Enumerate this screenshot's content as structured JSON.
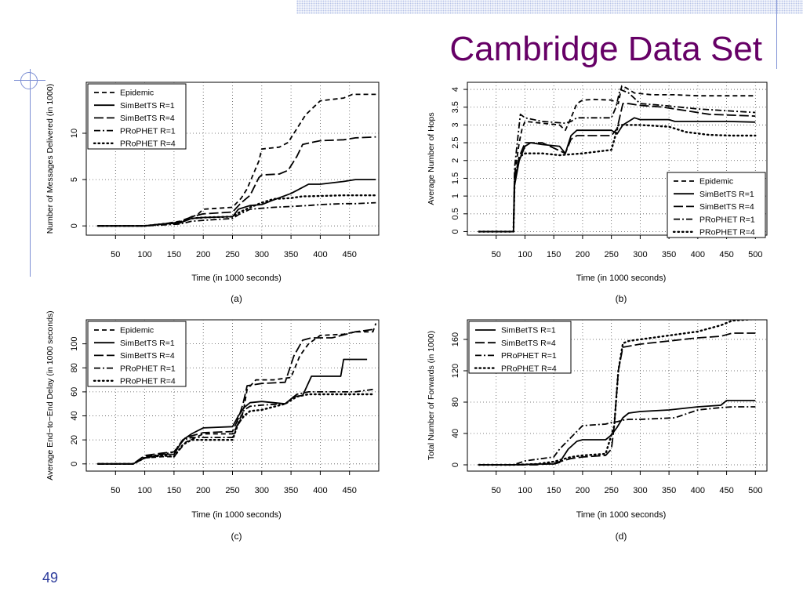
{
  "slide": {
    "title": "Cambridge Data Set",
    "page_number": "49"
  },
  "colors": {
    "title": "#660066",
    "accent": "#7d8fd4",
    "page_number": "#2b3a9b"
  },
  "chart_data": [
    {
      "type": "line",
      "caption": "(a)",
      "xlabel": "Time (in 1000 seconds)",
      "ylabel": "Number of Messages Delivered (in 1000)",
      "xlim": [
        0,
        500
      ],
      "ylim": [
        -1,
        15.5
      ],
      "xticks": [
        50,
        100,
        150,
        200,
        250,
        300,
        350,
        400,
        450
      ],
      "yticks": [
        0,
        5,
        10
      ],
      "grid": true,
      "legend_position": "top-left",
      "series": [
        {
          "name": "Epidemic",
          "style": "dashed",
          "x": [
            20,
            100,
            130,
            160,
            190,
            200,
            250,
            265,
            275,
            285,
            295,
            300,
            330,
            345,
            360,
            375,
            400,
            440,
            455,
            495
          ],
          "y": [
            0,
            0,
            0.2,
            0.5,
            1.2,
            1.8,
            2,
            3,
            4,
            5.5,
            7,
            8.3,
            8.5,
            9,
            10.5,
            12,
            13.5,
            13.8,
            14.2,
            14.2
          ]
        },
        {
          "name": "SimBetTS R=1",
          "style": "solid",
          "x": [
            20,
            100,
            130,
            160,
            180,
            200,
            250,
            260,
            280,
            300,
            320,
            350,
            365,
            380,
            400,
            440,
            460,
            495
          ],
          "y": [
            0,
            0,
            0.2,
            0.3,
            0.8,
            0.9,
            1.0,
            1.8,
            2.2,
            2.3,
            2.8,
            3.5,
            4.0,
            4.5,
            4.5,
            4.8,
            5.0,
            5.0
          ]
        },
        {
          "name": "SimBetTS R=4",
          "style": "longdash",
          "x": [
            20,
            100,
            130,
            160,
            180,
            200,
            250,
            265,
            280,
            295,
            300,
            330,
            345,
            360,
            370,
            385,
            400,
            440,
            460,
            495
          ],
          "y": [
            0,
            0,
            0.2,
            0.4,
            1.0,
            1.3,
            1.5,
            2.5,
            3.3,
            5.2,
            5.5,
            5.6,
            6.0,
            7.5,
            8.8,
            9.0,
            9.2,
            9.3,
            9.5,
            9.6
          ]
        },
        {
          "name": "PRoPHET R=1",
          "style": "dashdot",
          "x": [
            20,
            100,
            130,
            160,
            180,
            200,
            250,
            260,
            280,
            300,
            320,
            350,
            380,
            400,
            440,
            460,
            495
          ],
          "y": [
            0,
            0,
            0.1,
            0.2,
            0.5,
            0.6,
            0.8,
            1.2,
            1.8,
            1.9,
            2.0,
            2.1,
            2.2,
            2.3,
            2.4,
            2.4,
            2.5
          ]
        },
        {
          "name": "PRoPHET R=4",
          "style": "dotted",
          "x": [
            20,
            100,
            130,
            160,
            180,
            200,
            250,
            260,
            280,
            300,
            320,
            350,
            370,
            380,
            440,
            460,
            495
          ],
          "y": [
            0,
            0,
            0.2,
            0.4,
            0.8,
            0.9,
            1.0,
            1.4,
            2.0,
            2.5,
            2.9,
            3.0,
            3.2,
            3.2,
            3.3,
            3.3,
            3.3
          ]
        }
      ]
    },
    {
      "type": "line",
      "caption": "(b)",
      "xlabel": "Time (in 1000 seconds)",
      "ylabel": "Average Number of Hops",
      "xlim": [
        0,
        520
      ],
      "ylim": [
        -0.1,
        4.2
      ],
      "xticks": [
        50,
        100,
        150,
        200,
        250,
        300,
        350,
        400,
        450,
        500
      ],
      "yticks": [
        0,
        0.5,
        1,
        1.5,
        2,
        2.5,
        3,
        3.5,
        4
      ],
      "grid": true,
      "legend_position": "bottom-right",
      "series": [
        {
          "name": "Epidemic",
          "style": "dashed",
          "x": [
            20,
            80,
            82,
            90,
            95,
            100,
            130,
            160,
            170,
            180,
            190,
            200,
            220,
            250,
            262,
            268,
            275,
            290,
            320,
            360,
            400,
            500
          ],
          "y": [
            0,
            0,
            1.6,
            2.5,
            2.9,
            3.1,
            3.05,
            3.0,
            2.85,
            3.2,
            3.6,
            3.7,
            3.72,
            3.7,
            3.6,
            4.1,
            4.05,
            3.9,
            3.85,
            3.85,
            3.82,
            3.82
          ]
        },
        {
          "name": "SimBetTS R=1",
          "style": "solid",
          "x": [
            20,
            80,
            82,
            90,
            100,
            110,
            130,
            160,
            170,
            180,
            190,
            250,
            260,
            270,
            280,
            290,
            300,
            350,
            360,
            400,
            450,
            500
          ],
          "y": [
            0,
            0,
            1.3,
            2.0,
            2.4,
            2.5,
            2.45,
            2.4,
            2.2,
            2.7,
            2.85,
            2.85,
            2.75,
            3.0,
            3.1,
            3.2,
            3.15,
            3.15,
            3.1,
            3.1,
            3.1,
            3.08
          ]
        },
        {
          "name": "SimBetTS R=4",
          "style": "longdash",
          "x": [
            20,
            80,
            82,
            90,
            100,
            130,
            170,
            180,
            190,
            250,
            260,
            270,
            280,
            300,
            340,
            380,
            420,
            500
          ],
          "y": [
            0,
            0,
            1.5,
            2.1,
            2.5,
            2.5,
            2.2,
            2.6,
            2.7,
            2.7,
            2.9,
            3.6,
            3.6,
            3.55,
            3.5,
            3.4,
            3.3,
            3.25
          ]
        },
        {
          "name": "PRoPHET R=1",
          "style": "dashdot",
          "x": [
            20,
            80,
            82,
            92,
            100,
            130,
            170,
            180,
            190,
            250,
            258,
            265,
            280,
            300,
            340,
            400,
            450,
            500
          ],
          "y": [
            0,
            0,
            1.8,
            3.3,
            3.2,
            3.1,
            3.05,
            3.1,
            3.2,
            3.2,
            3.5,
            4.0,
            3.9,
            3.6,
            3.55,
            3.45,
            3.4,
            3.35
          ]
        },
        {
          "name": "PRoPHET R=4",
          "style": "dotted",
          "x": [
            20,
            80,
            82,
            90,
            100,
            130,
            160,
            200,
            250,
            262,
            270,
            300,
            350,
            380,
            420,
            460,
            500
          ],
          "y": [
            0,
            0,
            1.4,
            2.1,
            2.2,
            2.2,
            2.15,
            2.2,
            2.3,
            3.0,
            3.0,
            3.0,
            2.95,
            2.8,
            2.72,
            2.7,
            2.7
          ]
        }
      ]
    },
    {
      "type": "line",
      "caption": "(c)",
      "xlabel": "Time (in 1000 seconds)",
      "ylabel": "Average End−to−End Delay (in 1000 seconds)",
      "xlim": [
        0,
        500
      ],
      "ylim": [
        -6,
        120
      ],
      "xticks": [
        50,
        100,
        150,
        200,
        250,
        300,
        350,
        400,
        450
      ],
      "yticks": [
        0,
        20,
        40,
        60,
        80,
        100
      ],
      "grid": true,
      "legend_position": "top-left",
      "series": [
        {
          "name": "Epidemic",
          "style": "dashed",
          "x": [
            20,
            80,
            100,
            130,
            150,
            170,
            200,
            250,
            260,
            265,
            270,
            275,
            290,
            320,
            350,
            365,
            380,
            400,
            440,
            460,
            490,
            495
          ],
          "y": [
            0,
            0,
            5,
            6,
            6,
            18,
            25,
            25,
            33,
            37,
            48,
            62,
            70,
            70,
            72,
            90,
            100,
            107,
            108,
            110,
            110,
            117
          ]
        },
        {
          "name": "SimBetTS R=1",
          "style": "solid",
          "x": [
            20,
            80,
            100,
            130,
            150,
            165,
            180,
            200,
            250,
            260,
            270,
            280,
            300,
            340,
            355,
            370,
            385,
            400,
            435,
            440,
            480
          ],
          "y": [
            0,
            0,
            5,
            8,
            8,
            20,
            25,
            30,
            31,
            40,
            47,
            51,
            52,
            50,
            56,
            57,
            73,
            73,
            73,
            87,
            87
          ]
        },
        {
          "name": "SimBetTS R=4",
          "style": "longdash",
          "x": [
            20,
            80,
            100,
            130,
            150,
            170,
            200,
            250,
            260,
            268,
            275,
            300,
            340,
            355,
            370,
            385,
            420,
            460,
            490
          ],
          "y": [
            0,
            0,
            7,
            9,
            10,
            22,
            26,
            27,
            38,
            50,
            65,
            67,
            68,
            90,
            103,
            105,
            105,
            110,
            112
          ]
        },
        {
          "name": "PRoPHET R=1",
          "style": "dashdot",
          "x": [
            20,
            80,
            100,
            130,
            150,
            165,
            180,
            200,
            250,
            260,
            270,
            280,
            300,
            340,
            360,
            380,
            420,
            460,
            490
          ],
          "y": [
            0,
            0,
            6,
            8,
            10,
            20,
            22,
            22,
            22,
            35,
            45,
            48,
            49,
            50,
            58,
            60,
            60,
            60,
            62
          ]
        },
        {
          "name": "PRoPHET R=4",
          "style": "dotted",
          "x": [
            20,
            80,
            100,
            130,
            150,
            165,
            180,
            200,
            250,
            260,
            270,
            280,
            300,
            340,
            360,
            380,
            420,
            460,
            490
          ],
          "y": [
            0,
            0,
            5,
            7,
            6,
            16,
            20,
            20,
            20,
            34,
            40,
            44,
            45,
            50,
            56,
            58,
            58,
            58,
            58
          ]
        }
      ]
    },
    {
      "type": "line",
      "caption": "(d)",
      "xlabel": "Time (in 1000 seconds)",
      "ylabel": "Total Number of Forwards (in 1000)",
      "xlim": [
        0,
        520
      ],
      "ylim": [
        -8,
        185
      ],
      "xticks": [
        50,
        100,
        150,
        200,
        250,
        300,
        350,
        400,
        450,
        500
      ],
      "yticks": [
        0,
        40,
        80,
        120,
        160
      ],
      "grid": true,
      "legend_position": "top-left",
      "series": [
        {
          "name": "SimBetTS R=1",
          "style": "solid",
          "x": [
            20,
            80,
            120,
            150,
            160,
            175,
            190,
            200,
            240,
            250,
            260,
            270,
            280,
            300,
            350,
            400,
            440,
            450,
            500
          ],
          "y": [
            0,
            0,
            1,
            1,
            3,
            20,
            30,
            32,
            32,
            38,
            48,
            60,
            66,
            68,
            70,
            74,
            76,
            82,
            82
          ]
        },
        {
          "name": "SimBetTS R=4",
          "style": "longdash",
          "x": [
            20,
            80,
            120,
            150,
            165,
            180,
            200,
            240,
            250,
            255,
            262,
            270,
            285,
            300,
            350,
            400,
            440,
            460,
            500
          ],
          "y": [
            0,
            0,
            0,
            2,
            5,
            8,
            10,
            12,
            20,
            50,
            120,
            150,
            152,
            154,
            158,
            162,
            164,
            168,
            168
          ]
        },
        {
          "name": "PRoPHET R=1",
          "style": "dashdot",
          "x": [
            20,
            80,
            100,
            130,
            150,
            160,
            180,
            200,
            240,
            250,
            260,
            270,
            280,
            300,
            360,
            380,
            400,
            440,
            460,
            500
          ],
          "y": [
            0,
            0,
            5,
            8,
            10,
            20,
            35,
            50,
            52,
            54,
            55,
            57,
            58,
            58,
            60,
            65,
            70,
            73,
            74,
            74
          ]
        },
        {
          "name": "PRoPHET R=4",
          "style": "dotted",
          "x": [
            20,
            80,
            120,
            150,
            165,
            180,
            200,
            240,
            255,
            262,
            270,
            280,
            300,
            350,
            400,
            440,
            460,
            500
          ],
          "y": [
            0,
            0,
            1,
            4,
            7,
            10,
            12,
            14,
            50,
            120,
            155,
            158,
            160,
            165,
            170,
            178,
            184,
            186
          ]
        }
      ]
    }
  ]
}
